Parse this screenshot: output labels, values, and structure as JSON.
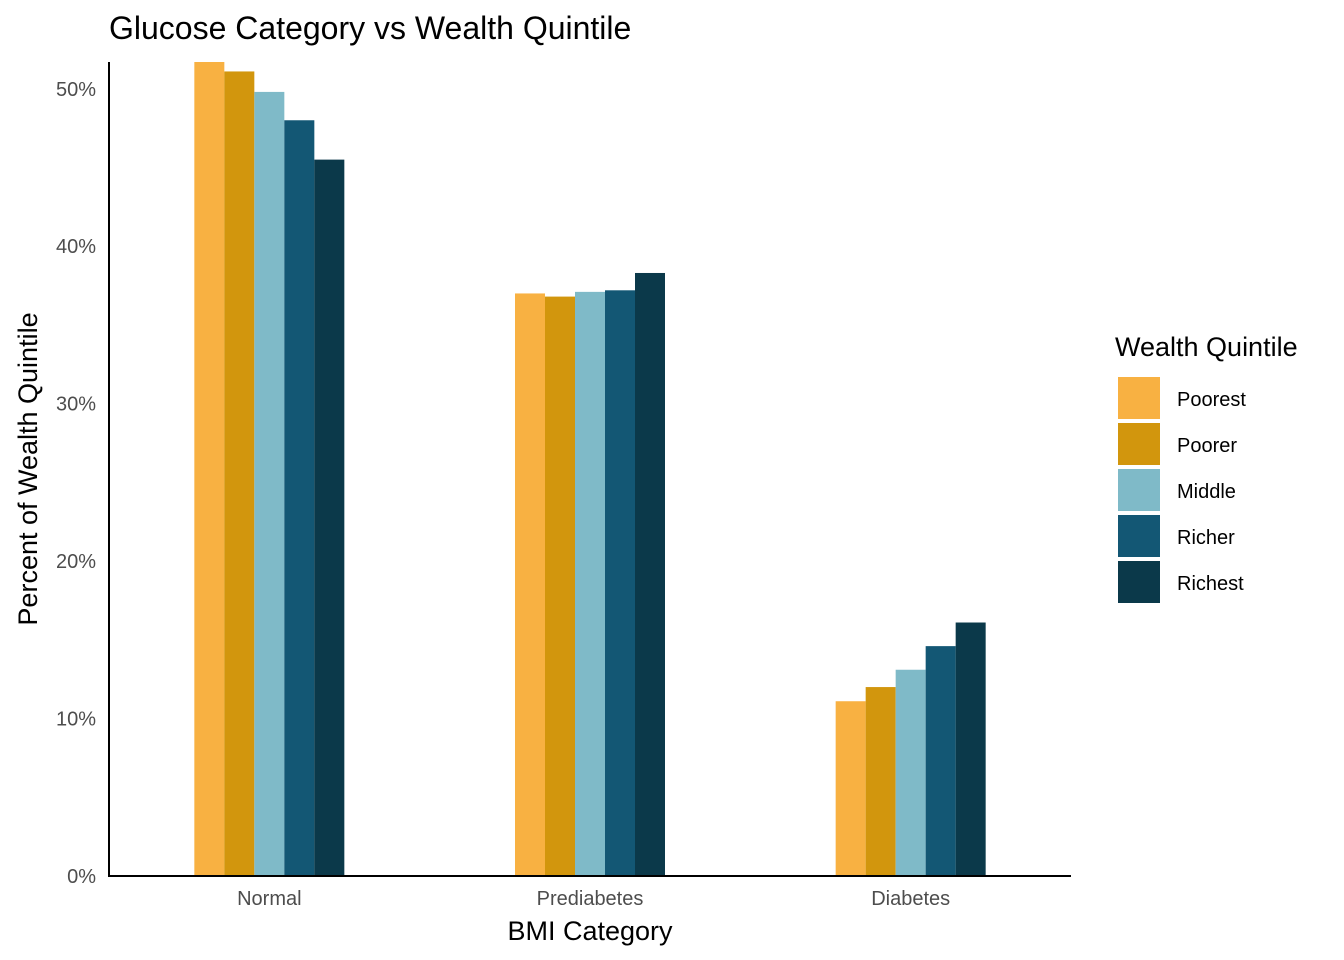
{
  "chart_data": {
    "type": "bar",
    "title": "Glucose Category vs Wealth Quintile",
    "xlabel": "BMI Category",
    "ylabel": "Percent of Wealth Quintile",
    "categories": [
      "Normal",
      "Prediabetes",
      "Diabetes"
    ],
    "series": [
      {
        "name": "Poorest",
        "color": "#F8B142",
        "values": [
          51.7,
          37.0,
          11.1
        ]
      },
      {
        "name": "Poorer",
        "color": "#D2960D",
        "values": [
          51.1,
          36.8,
          12.0
        ]
      },
      {
        "name": "Middle",
        "color": "#7FBAC8",
        "values": [
          49.8,
          37.1,
          13.1
        ]
      },
      {
        "name": "Richer",
        "color": "#135774",
        "values": [
          48.0,
          37.2,
          14.6
        ]
      },
      {
        "name": "Richest",
        "color": "#0B394A",
        "values": [
          45.5,
          38.3,
          16.1
        ]
      }
    ],
    "ylim": [
      0,
      51.7
    ],
    "yticks": [
      0,
      10,
      20,
      30,
      40,
      50
    ],
    "ytick_labels": [
      "0%",
      "10%",
      "20%",
      "30%",
      "40%",
      "50%"
    ],
    "legend": {
      "title": "Wealth Quintile",
      "position": "right"
    },
    "grid": false
  }
}
